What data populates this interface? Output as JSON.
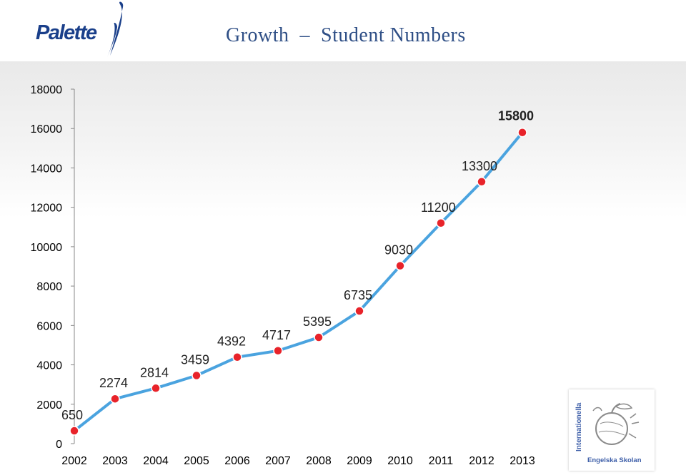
{
  "header": {
    "logo_text": "Palette",
    "title": "Growth  –  Student Numbers"
  },
  "chart_data": {
    "type": "line",
    "title": "Growth  –  Student Numbers",
    "xlabel": "",
    "ylabel": "",
    "categories": [
      "2002",
      "2003",
      "2004",
      "2005",
      "2006",
      "2007",
      "2008",
      "2009",
      "2010",
      "2011",
      "2012",
      "2013"
    ],
    "series": [
      {
        "values": [
          650,
          2274,
          2814,
          3459,
          4392,
          4717,
          5395,
          6735,
          9030,
          11200,
          13300,
          15800
        ]
      }
    ],
    "data_labels": [
      "650",
      "2274",
      "2814",
      "3459",
      "4392",
      "4717",
      "5395",
      "6735",
      "9030",
      "11200",
      "13300",
      "15800"
    ],
    "emphasized_label": "15800",
    "ylim": [
      0,
      18000
    ],
    "yticks": [
      "0",
      "2000",
      "4000",
      "6000",
      "8000",
      "10000",
      "12000",
      "14000",
      "16000",
      "18000"
    ],
    "grid": false,
    "legend": "none",
    "colors": {
      "line": "#4aa3df",
      "marker": "#e8232a",
      "marker_edge": "#ffffff",
      "title": "#2f4f86"
    }
  },
  "badge": {
    "vertical_text": "Internationella",
    "bottom_text": "Engelska Skolan",
    "icon": "apple-emblem-icon"
  }
}
